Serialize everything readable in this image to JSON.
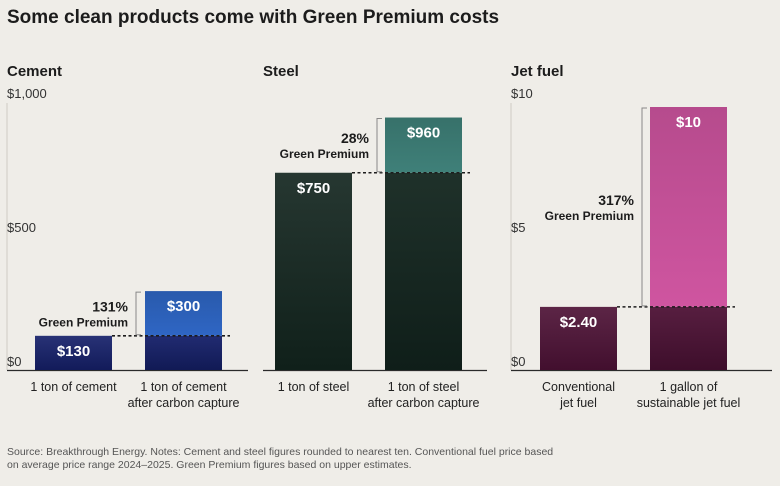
{
  "title": "Some clean products come with Green Premium costs",
  "source": [
    "Source: Breakthrough Energy. Notes: Cement and steel figures rounded to nearest ten. Conventional fuel price based",
    "on average price range 2024–2025. Green Premium figures based on upper estimates."
  ],
  "colors": {
    "cement_base": "#15206a",
    "cement_green": "#2f66c4",
    "steel_base": "#13261f",
    "steel_green": "#3f8079",
    "fuel_base": "#4e1236",
    "fuel_green": "#cf55a0"
  },
  "chart_data": [
    {
      "type": "bar",
      "title": "Cement",
      "ylim": [
        0,
        1000
      ],
      "yticks": [
        "$0",
        "$500",
        "$1,000"
      ],
      "categories": [
        [
          "1 ton of cement"
        ],
        [
          "1 ton of cement",
          "after carbon capture"
        ]
      ],
      "values": [
        130,
        300
      ],
      "labels": [
        "$130",
        "$300"
      ],
      "premium": {
        "pct": "131%",
        "label": "Green Premium"
      }
    },
    {
      "type": "bar",
      "title": "Steel",
      "ylim": [
        0,
        1000
      ],
      "yticks": [],
      "categories": [
        [
          "1 ton of steel"
        ],
        [
          "1 ton of steel",
          "after carbon capture"
        ]
      ],
      "values": [
        750,
        960
      ],
      "labels": [
        "$750",
        "$960"
      ],
      "premium": {
        "pct": "28%",
        "label": "Green Premium"
      }
    },
    {
      "type": "bar",
      "title": "Jet fuel",
      "ylim": [
        0,
        10
      ],
      "yticks": [
        "$0",
        "$5",
        "$10"
      ],
      "categories": [
        [
          "Conventional",
          "jet fuel"
        ],
        [
          "1 gallon of",
          "sustainable jet fuel"
        ]
      ],
      "values": [
        2.4,
        10
      ],
      "labels": [
        "$2.40",
        "$10"
      ],
      "premium": {
        "pct": "317%",
        "label": "Green Premium"
      }
    }
  ]
}
